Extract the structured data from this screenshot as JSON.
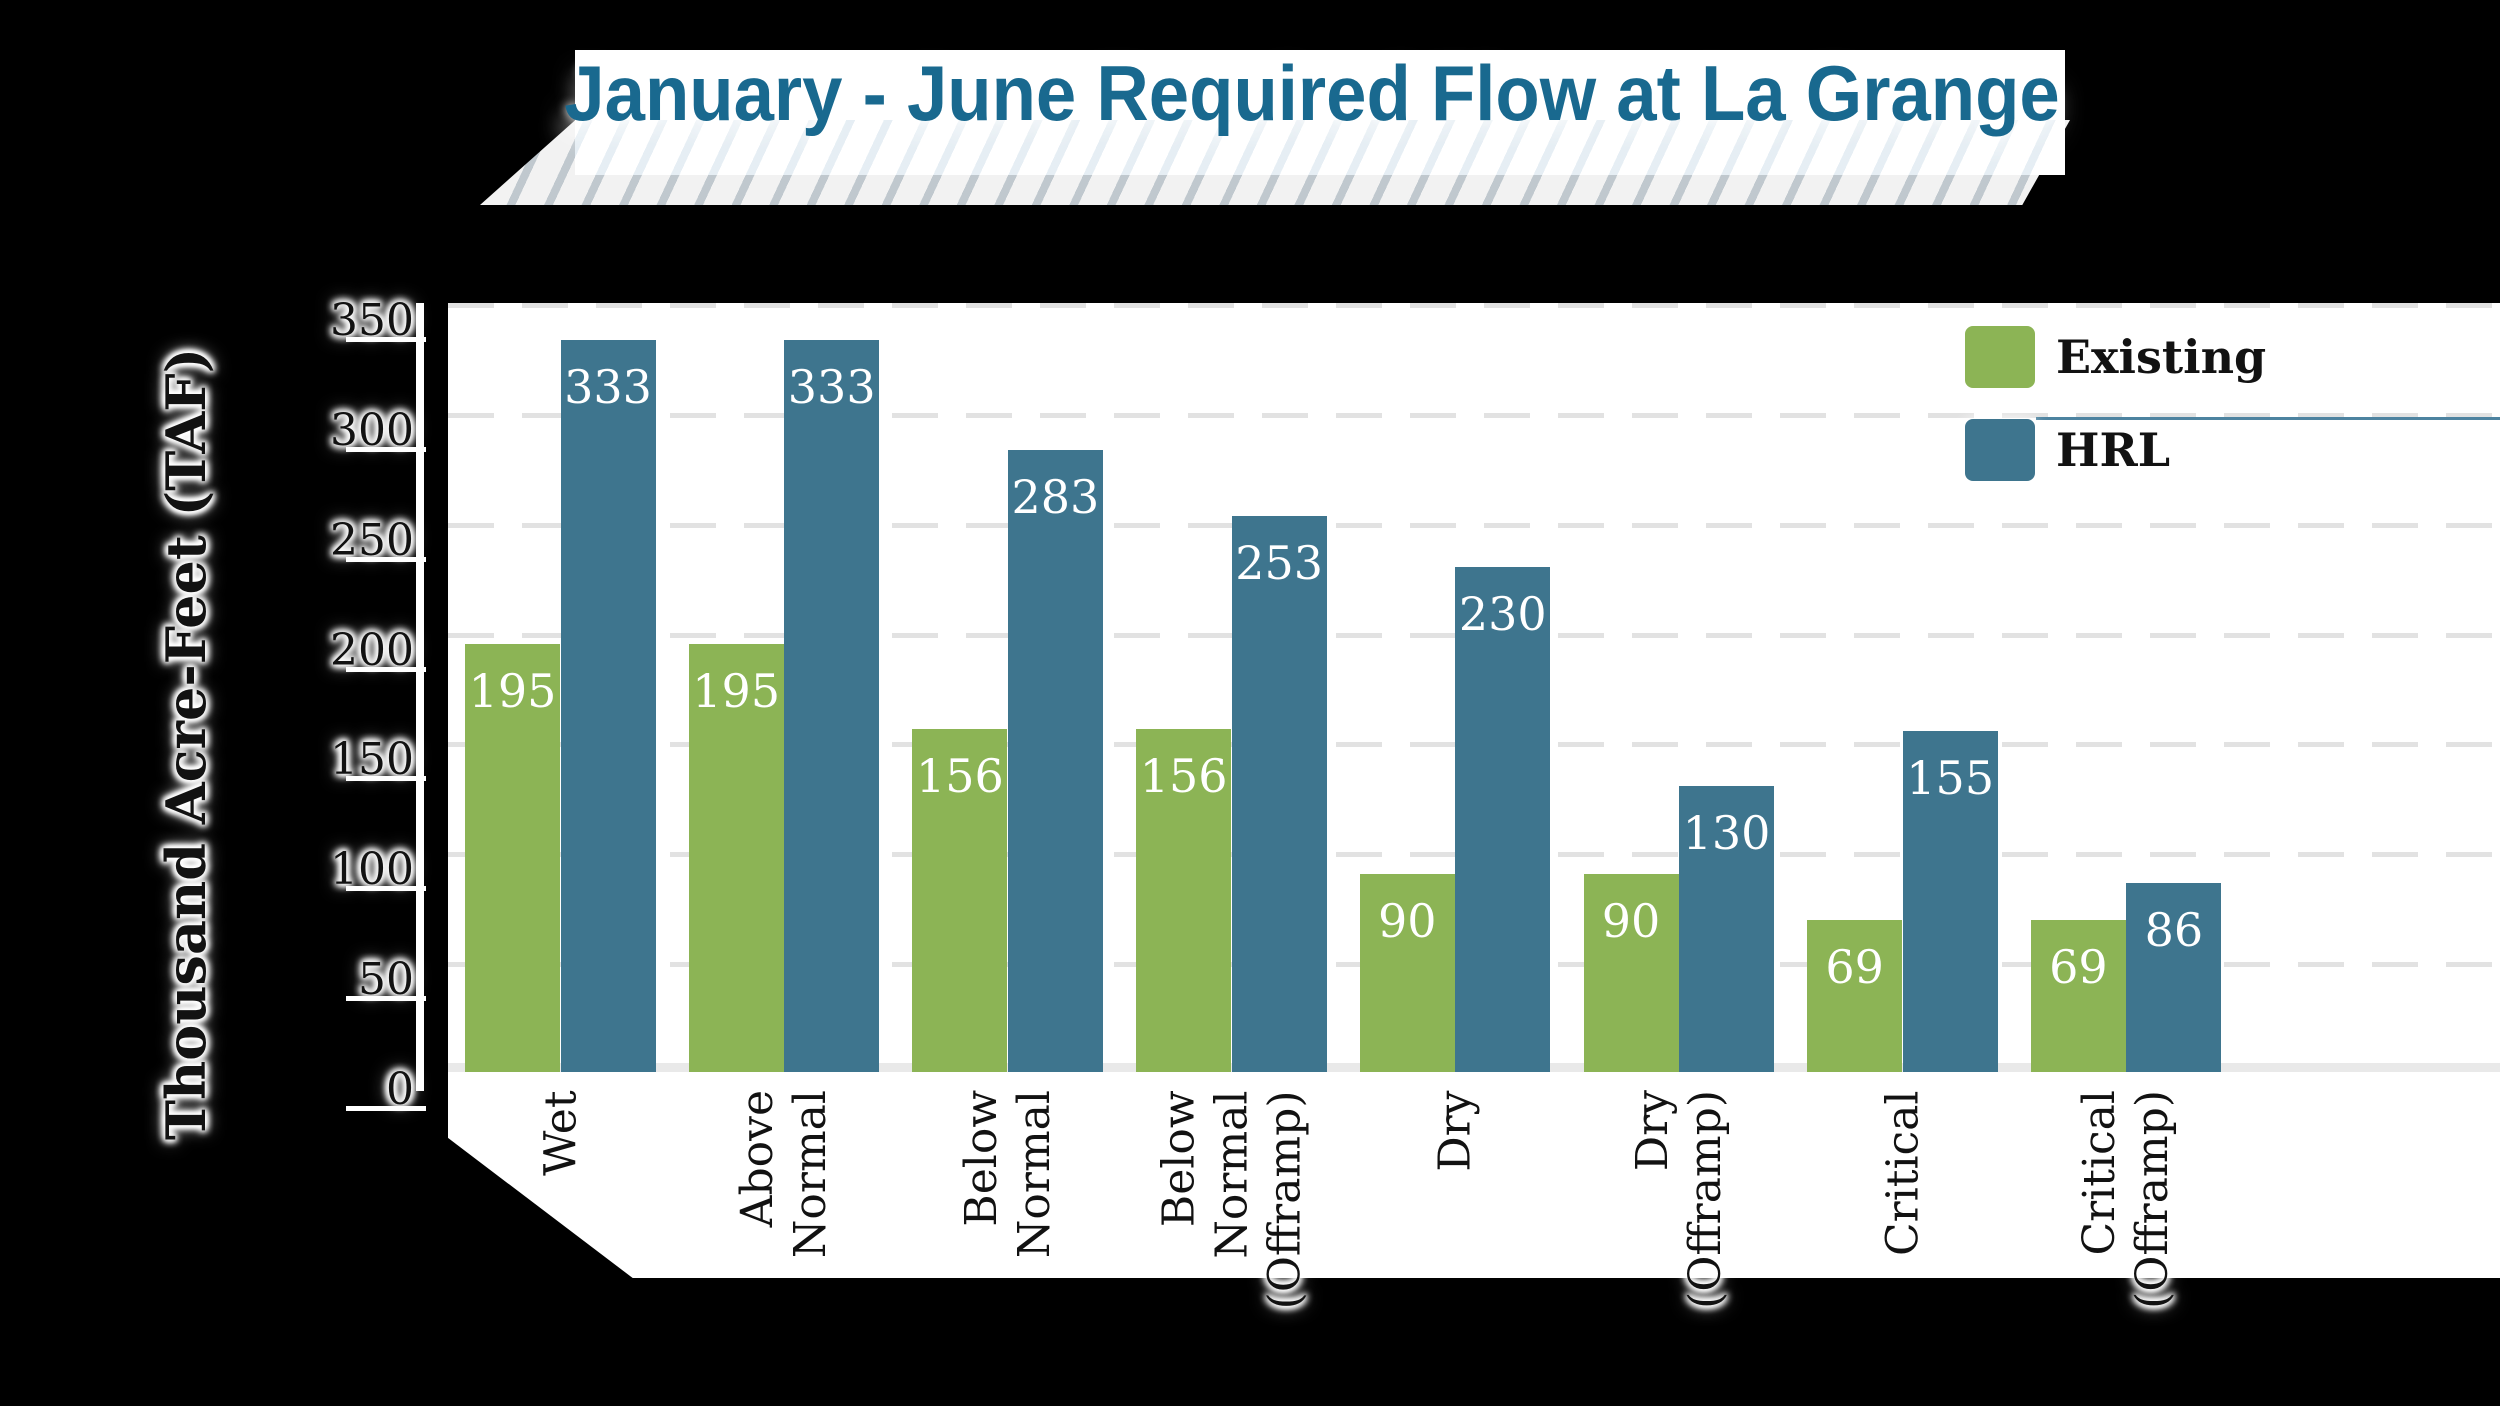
{
  "title": "January - June Required Flow at La Grange",
  "y_axis": {
    "label": "Thousand Acre-Feet (TAF)",
    "ticks": [
      0,
      50,
      100,
      150,
      200,
      250,
      300,
      350
    ]
  },
  "legend": [
    {
      "name": "Existing",
      "color": "#8CB455"
    },
    {
      "name": "HRL",
      "color": "#3E758E"
    }
  ],
  "colors": {
    "title_text": "#19698F",
    "existing_bar": "#8CB455",
    "hrl_bar": "#3E758E",
    "gridline": "#E2E2E2",
    "plot_background": "#FFFFFF",
    "page_background": "#000000",
    "bar_value_text": "#FFFFFF",
    "axis_text": "#121212",
    "legend_rule": "#4D83A0"
  },
  "chart_data": {
    "type": "bar",
    "title": "January - June Required Flow at La Grange",
    "categories": [
      "Wet",
      "Above\nNormal",
      "Below\nNormal",
      "Below\nNormal\n(Offramp)",
      "Dry",
      "Dry\n(Offramp)",
      "Critical",
      "Critical\n(Offramp)"
    ],
    "series": [
      {
        "name": "Existing",
        "color": "#8CB455",
        "values": [
          195,
          195,
          156,
          156,
          90,
          90,
          69,
          69
        ]
      },
      {
        "name": "HRL",
        "color": "#3E758E",
        "values": [
          333,
          333,
          283,
          253,
          230,
          130,
          155,
          86
        ]
      }
    ],
    "xlabel": "",
    "ylabel": "Thousand Acre-Feet (TAF)",
    "ylim": [
      0,
      350
    ],
    "ytick_step": 50,
    "grid": true,
    "grid_style": "dashed",
    "value_labels": "inside-top",
    "legend_position": "top-right"
  }
}
